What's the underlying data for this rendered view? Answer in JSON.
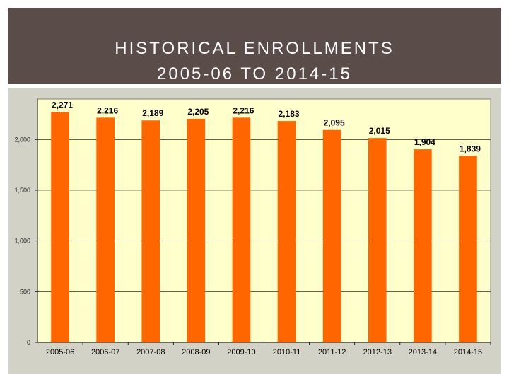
{
  "slide": {
    "title_line1": "HISTORICAL ENROLLMENTS",
    "title_line2": "2005-06 TO 2014-15"
  },
  "colors": {
    "title_bg": "#5a4c48",
    "panel_bg": "#d2d3c6",
    "plot_bg": "#ffffcc",
    "bar": "#ff6600"
  },
  "chart_data": {
    "type": "bar",
    "title": "HISTORICAL ENROLLMENTS 2005-06 TO 2014-15",
    "categories": [
      "2005-06",
      "2006-07",
      "2007-08",
      "2008-09",
      "2009-10",
      "2010-11",
      "2011-12",
      "2012-13",
      "2013-14",
      "2014-15"
    ],
    "values": [
      2271,
      2216,
      2189,
      2205,
      2216,
      2183,
      2095,
      2015,
      1904,
      1839
    ],
    "value_labels": [
      "2,271",
      "2,216",
      "2,189",
      "2,205",
      "2,216",
      "2,183",
      "2,095",
      "2,015",
      "1,904",
      "1,839"
    ],
    "yticks": [
      0,
      500,
      1000,
      1500,
      2000
    ],
    "ytick_labels": [
      "0",
      "500",
      "1,000",
      "1,500",
      "2,000"
    ],
    "ylim": [
      0,
      2400
    ],
    "xlabel": "",
    "ylabel": "",
    "grid": true,
    "legend": "none"
  }
}
